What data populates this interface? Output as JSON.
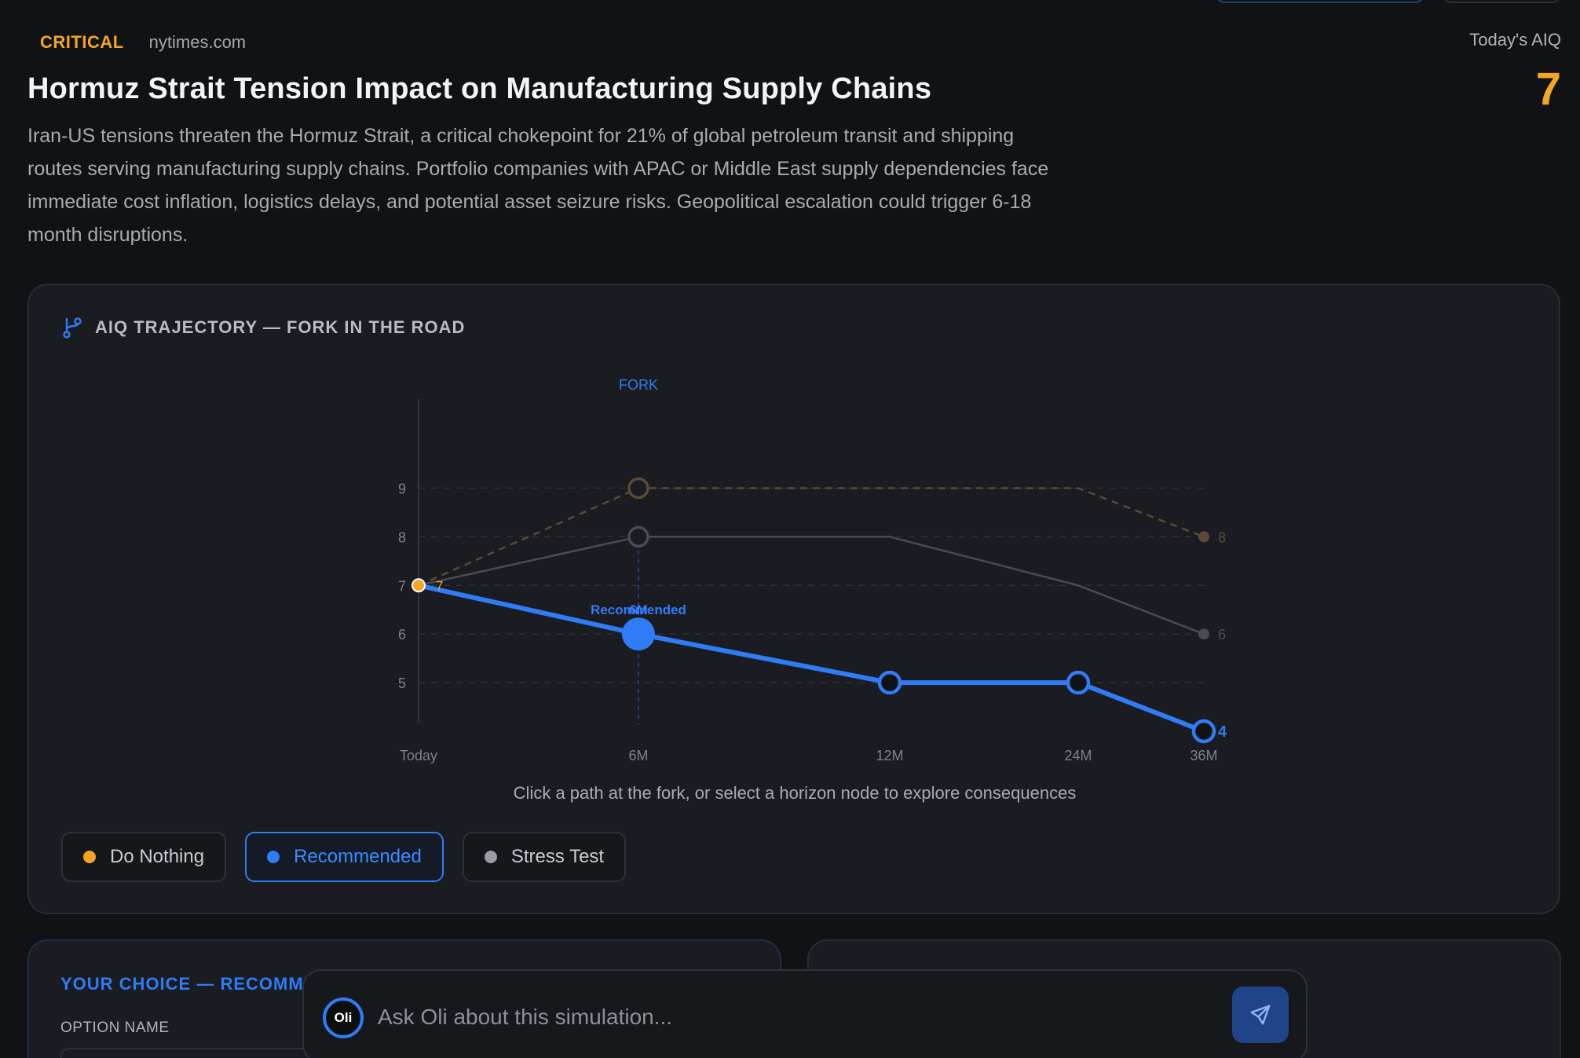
{
  "alert": {
    "severity": "CRITICAL",
    "source": "nytimes.com",
    "title": "Hormuz Strait Tension Impact on Manufacturing Supply Chains",
    "description": "Iran-US tensions threaten the Hormuz Strait, a critical chokepoint for 21% of global petroleum transit and shipping routes serving manufacturing supply chains. Portfolio companies with APAC or Middle East supply dependencies face immediate cost inflation, logistics delays, and potential asset seizure risks. Geopolitical escalation could trigger 6-18 month disruptions."
  },
  "aiq": {
    "label": "Today's AIQ",
    "value": "7"
  },
  "trajectory_card": {
    "title": "AIQ TRAJECTORY — FORK IN THE ROAD",
    "hint": "Click a path at the fork, or select a horizon node to explore consequences",
    "legend": [
      {
        "label": "Do Nothing",
        "color": "#f5a524",
        "active": false
      },
      {
        "label": "Recommended",
        "color": "#2f7cf6",
        "active": true
      },
      {
        "label": "Stress Test",
        "color": "#9a9ca3",
        "active": false
      }
    ]
  },
  "chart_data": {
    "type": "line",
    "x": [
      "Today",
      "6M",
      "12M",
      "24M",
      "36M"
    ],
    "ylim": [
      4,
      9.8
    ],
    "yticks": [
      5,
      6,
      7,
      8,
      9
    ],
    "fork_label": "FORK",
    "fork_x": "6M",
    "start_value_label": "7",
    "series": [
      {
        "name": "Do Nothing",
        "values": [
          7,
          9,
          9,
          9,
          8
        ],
        "color": "#5a4a36",
        "end_label": "8",
        "style": "dashed"
      },
      {
        "name": "Stress Test",
        "values": [
          7,
          8,
          8,
          7,
          6
        ],
        "color": "#4a4c52",
        "end_label": "6",
        "style": "solid"
      },
      {
        "name": "Recommended",
        "values": [
          7,
          6,
          5,
          5,
          4
        ],
        "color": "#2f7cf6",
        "end_label": "4",
        "style": "solid",
        "node_labels": [
          "",
          "Recommended",
          "",
          "",
          ""
        ],
        "node_sub_labels": [
          "",
          "6M",
          "",
          "",
          ""
        ]
      }
    ]
  },
  "choice_card": {
    "title": "YOUR CHOICE — RECOMMENDED",
    "option_label": "OPTION NAME"
  },
  "ask": {
    "avatar": "Oli",
    "placeholder": "Ask Oli about this simulation..."
  }
}
